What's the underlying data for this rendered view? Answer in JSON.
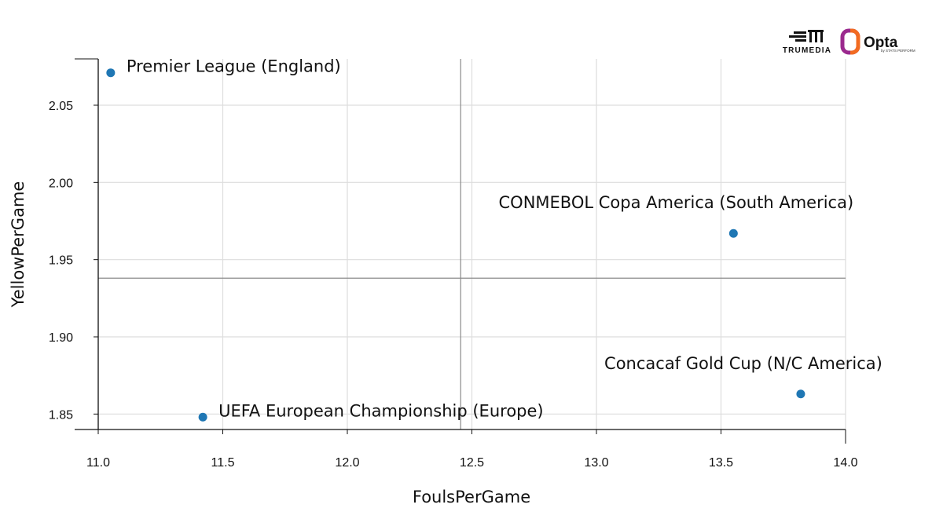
{
  "logos": {
    "trumedia_text": "TRUMEDIA",
    "opta_text": "Opta",
    "opta_sub": "by STATS PERFORM"
  },
  "colors": {
    "point": "#1f77b4",
    "grid": "#dddddd",
    "axis": "#111111",
    "reference": "#8a8a8a",
    "opta_orange": "#f26b21",
    "opta_purple": "#9b2a8e"
  },
  "chart_data": {
    "type": "scatter",
    "title": "",
    "xlabel": "FoulsPerGame",
    "ylabel": "YellowPerGame",
    "xlim": [
      11.0,
      14.0
    ],
    "ylim": [
      1.84,
      2.08
    ],
    "xticks": [
      11.0,
      11.5,
      12.0,
      12.5,
      13.0,
      13.5,
      14.0
    ],
    "yticks": [
      1.85,
      1.9,
      1.95,
      2.0,
      2.05
    ],
    "x_tick_labels": [
      "11.0",
      "11.5",
      "12.0",
      "12.5",
      "13.0",
      "13.5",
      "14.0"
    ],
    "y_tick_labels": [
      "1.85",
      "1.90",
      "1.95",
      "2.00",
      "2.05"
    ],
    "grid": true,
    "reference_lines": {
      "x": 12.455,
      "y": 1.938
    },
    "points": [
      {
        "label": "Premier League (England)",
        "x": 11.05,
        "y": 2.071,
        "label_anchor": "right"
      },
      {
        "label": "CONMEBOL Copa America (South America)",
        "x": 13.55,
        "y": 1.967,
        "label_anchor": "above"
      },
      {
        "label": "Concacaf Gold Cup (N/C America)",
        "x": 13.82,
        "y": 1.863,
        "label_anchor": "above"
      },
      {
        "label": "UEFA European Championship (Europe)",
        "x": 11.42,
        "y": 1.848,
        "label_anchor": "right"
      }
    ]
  }
}
